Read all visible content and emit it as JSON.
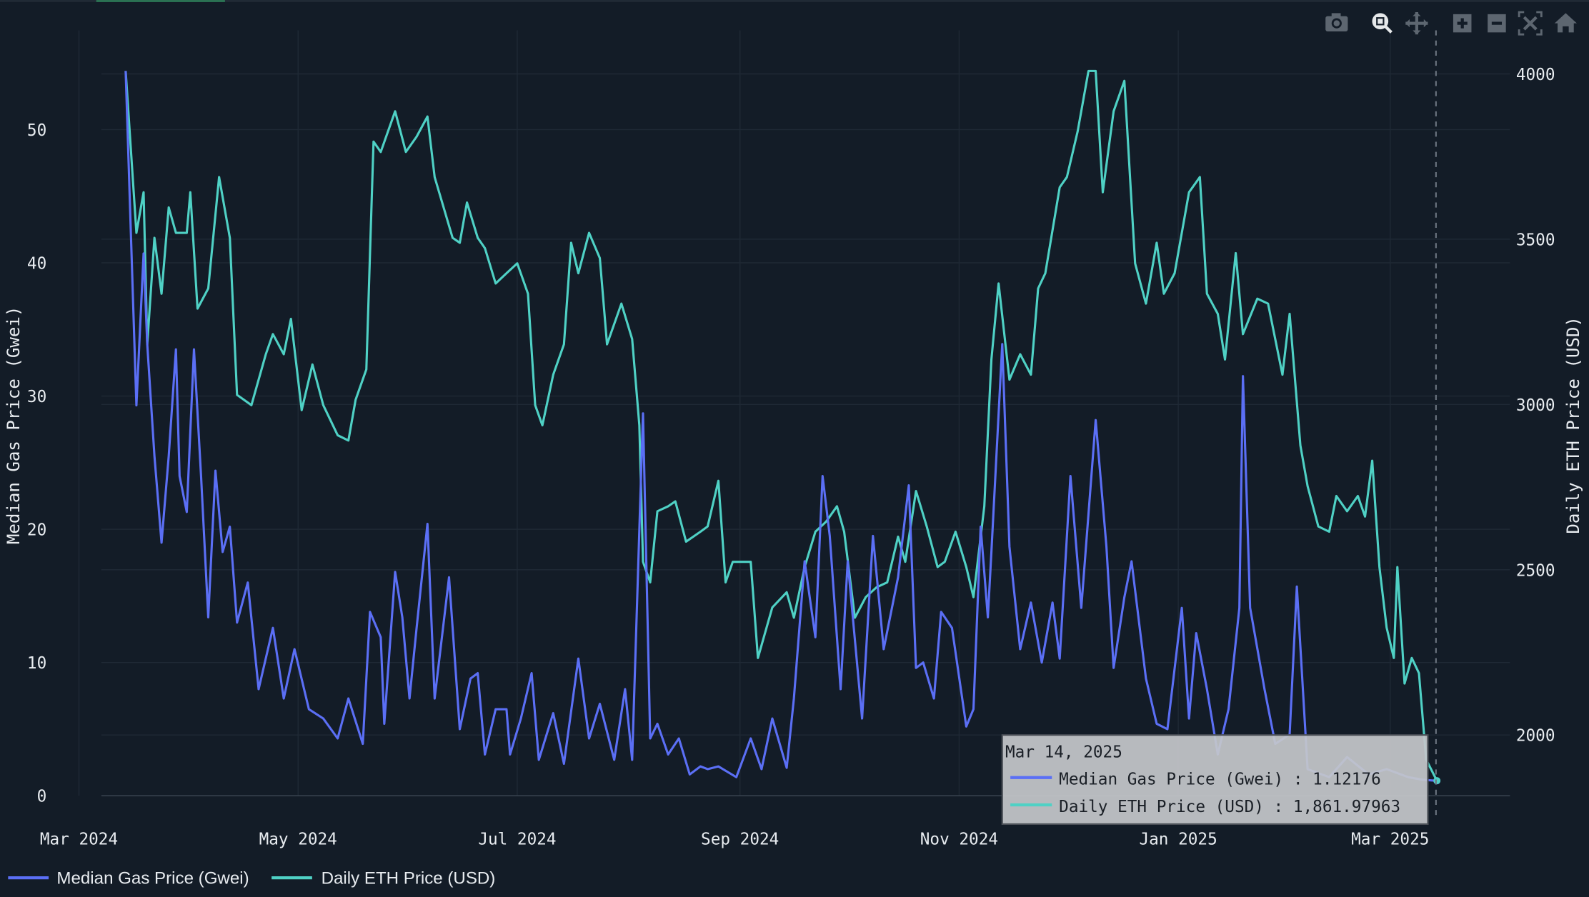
{
  "chart_data": {
    "type": "line",
    "start_date": "2024-03-14",
    "x_unit": "days since start_date",
    "xlim_days": [
      -20,
      390
    ],
    "x_ticks": [
      {
        "label": "Mar 2024",
        "day": -13
      },
      {
        "label": "May 2024",
        "day": 48
      },
      {
        "label": "Jul 2024",
        "day": 109
      },
      {
        "label": "Sep 2024",
        "day": 171
      },
      {
        "label": "Nov 2024",
        "day": 232
      },
      {
        "label": "Jan 2025",
        "day": 293
      },
      {
        "label": "Mar 2025",
        "day": 352
      }
    ],
    "y_left": {
      "label": "Median Gas Price (Gwei)",
      "ylim": [
        -1.7,
        60
      ],
      "ticks": [
        "0",
        "10",
        "20",
        "30",
        "40",
        "50"
      ]
    },
    "y_right": {
      "label": "Daily ETH Price (USD)",
      "ylim": [
        1820,
        4130
      ],
      "ticks": [
        "2000",
        "2500",
        "3000",
        "3500",
        "4000"
      ]
    },
    "grid": true,
    "legend_placement": "bottom-left",
    "series": [
      {
        "name": "Median Gas Price (Gwei)",
        "axis": "left",
        "color": "#5b6ff5",
        "days": [
          0,
          3,
          5,
          6,
          8,
          10,
          12,
          14,
          15,
          17,
          19,
          21,
          23,
          25,
          27,
          29,
          31,
          34,
          37,
          41,
          44,
          47,
          51,
          55,
          59,
          62,
          66,
          68,
          71,
          72,
          75,
          77,
          79,
          81,
          84,
          86,
          90,
          93,
          96,
          98,
          100,
          103,
          106,
          107,
          110,
          113,
          115,
          119,
          122,
          126,
          129,
          132,
          136,
          139,
          141,
          144,
          146,
          148,
          151,
          154,
          157,
          160,
          162,
          165,
          170,
          174,
          177,
          180,
          184,
          186,
          189,
          192,
          194,
          196,
          199,
          201,
          205,
          208,
          211,
          215,
          218,
          220,
          222,
          225,
          227,
          230,
          234,
          236,
          238,
          240,
          241,
          244,
          246,
          249,
          252,
          255,
          258,
          260,
          263,
          266,
          270,
          273,
          275,
          278,
          280,
          284,
          287,
          290,
          294,
          296,
          298,
          301,
          304,
          307,
          310,
          311,
          313,
          317,
          320,
          324,
          326,
          329,
          335,
          340,
          346,
          351,
          357,
          361,
          365
        ],
        "values": [
          54.4,
          29.3,
          40.7,
          33.9,
          25.5,
          19,
          25.5,
          33.5,
          24,
          21.3,
          33.5,
          24,
          13.4,
          24.4,
          18.3,
          20.2,
          13,
          16,
          8,
          12.6,
          7.3,
          11,
          6.5,
          5.8,
          4.3,
          7.3,
          3.9,
          13.8,
          11.9,
          5.4,
          16.8,
          13.4,
          7.3,
          12.6,
          20.4,
          7.3,
          16.4,
          5,
          8.8,
          9.2,
          3.1,
          6.5,
          6.5,
          3.1,
          5.8,
          9.2,
          2.7,
          6.2,
          2.4,
          10.3,
          4.3,
          6.9,
          2.7,
          8,
          2.7,
          28.7,
          4.3,
          5.4,
          3.1,
          4.3,
          1.6,
          2.2,
          2,
          2.2,
          1.4,
          4.3,
          2,
          5.8,
          2.1,
          7.3,
          17.6,
          11.9,
          24,
          19.5,
          8,
          17.6,
          5.8,
          19.5,
          11,
          16.4,
          23.3,
          9.6,
          10,
          7.3,
          13.8,
          12.6,
          5.2,
          6.5,
          20.2,
          13.4,
          18.3,
          33.9,
          18.7,
          11,
          14.5,
          10,
          14.5,
          10.3,
          24,
          14.1,
          28.2,
          18.7,
          9.6,
          14.9,
          17.6,
          8.8,
          5.4,
          5,
          14.1,
          5.8,
          12.2,
          8,
          3.1,
          6.5,
          14.1,
          31.5,
          14.1,
          8,
          3.9,
          4.6,
          15.7,
          2,
          1.4,
          2.9,
          1.6,
          2,
          1.4,
          1.2,
          1.12176
        ]
      },
      {
        "name": "Daily ETH Price (USD)",
        "axis": "right",
        "color": "#4fd1c5",
        "days": [
          0,
          3,
          5,
          6,
          8,
          10,
          12,
          14,
          17,
          18,
          20,
          23,
          26,
          29,
          31,
          35,
          39,
          41,
          44,
          46,
          49,
          52,
          55,
          59,
          62,
          64,
          67,
          69,
          71,
          75,
          78,
          81,
          84,
          86,
          91,
          93,
          95,
          98,
          100,
          103,
          106,
          109,
          112,
          114,
          116,
          119,
          122,
          124,
          126,
          129,
          132,
          134,
          138,
          141,
          143,
          144,
          146,
          148,
          151,
          153,
          156,
          160,
          162,
          165,
          167,
          169,
          174,
          176,
          180,
          184,
          186,
          189,
          192,
          195,
          198,
          200,
          203,
          206,
          209,
          212,
          215,
          217,
          220,
          223,
          226,
          228,
          231,
          234,
          236,
          239,
          241,
          243,
          246,
          249,
          252,
          254,
          256,
          260,
          262,
          265,
          268,
          270,
          272,
          275,
          278,
          281,
          284,
          287,
          289,
          292,
          296,
          299,
          301,
          304,
          306,
          309,
          311,
          315,
          318,
          322,
          324,
          327,
          329,
          332,
          335,
          337,
          340,
          343,
          345,
          347,
          349,
          351,
          353,
          354,
          356,
          358,
          360,
          362,
          365
        ],
        "values": [
          4009,
          3519,
          3642,
          3182,
          3504,
          3335,
          3596,
          3519,
          3519,
          3642,
          3290,
          3351,
          3688,
          3504,
          3029,
          2998,
          3152,
          3213,
          3152,
          3259,
          2983,
          3121,
          2998,
          2907,
          2891,
          3014,
          3106,
          3795,
          3764,
          3887,
          3764,
          3810,
          3871,
          3688,
          3504,
          3489,
          3611,
          3504,
          3473,
          3366,
          3397,
          3427,
          3335,
          2998,
          2937,
          3090,
          3182,
          3489,
          3397,
          3519,
          3443,
          3182,
          3305,
          3198,
          2937,
          2524,
          2462,
          2677,
          2692,
          2707,
          2585,
          2615,
          2631,
          2769,
          2462,
          2524,
          2524,
          2233,
          2386,
          2432,
          2355,
          2508,
          2615,
          2646,
          2692,
          2615,
          2355,
          2417,
          2447,
          2462,
          2600,
          2524,
          2738,
          2631,
          2508,
          2524,
          2615,
          2508,
          2417,
          2692,
          3136,
          3366,
          3075,
          3152,
          3090,
          3351,
          3397,
          3657,
          3688,
          3826,
          4009,
          4009,
          3642,
          3887,
          3979,
          3427,
          3305,
          3489,
          3335,
          3397,
          3642,
          3688,
          3335,
          3274,
          3136,
          3458,
          3213,
          3320,
          3305,
          3090,
          3274,
          2876,
          2753,
          2631,
          2615,
          2723,
          2677,
          2723,
          2661,
          2830,
          2508,
          2325,
          2233,
          2508,
          2156,
          2233,
          2187,
          1926,
          1861.97963
        ]
      }
    ],
    "hover": {
      "date": "Mar 14, 2025",
      "rows": [
        {
          "text": "Median Gas Price (Gwei) : 1.12176",
          "color": "#5b6ff5"
        },
        {
          "text": "Daily ETH Price (USD) : 1,861.97963",
          "color": "#4fd1c5"
        }
      ]
    }
  },
  "toolbar": {
    "icons": [
      "camera-icon",
      "zoom-icon",
      "pan-icon",
      "zoom-in-icon",
      "zoom-out-icon",
      "autoscale-icon",
      "home-icon"
    ],
    "active": "zoom-icon"
  },
  "colors": {
    "background": "#131c27",
    "accent": "#2ecc71"
  }
}
